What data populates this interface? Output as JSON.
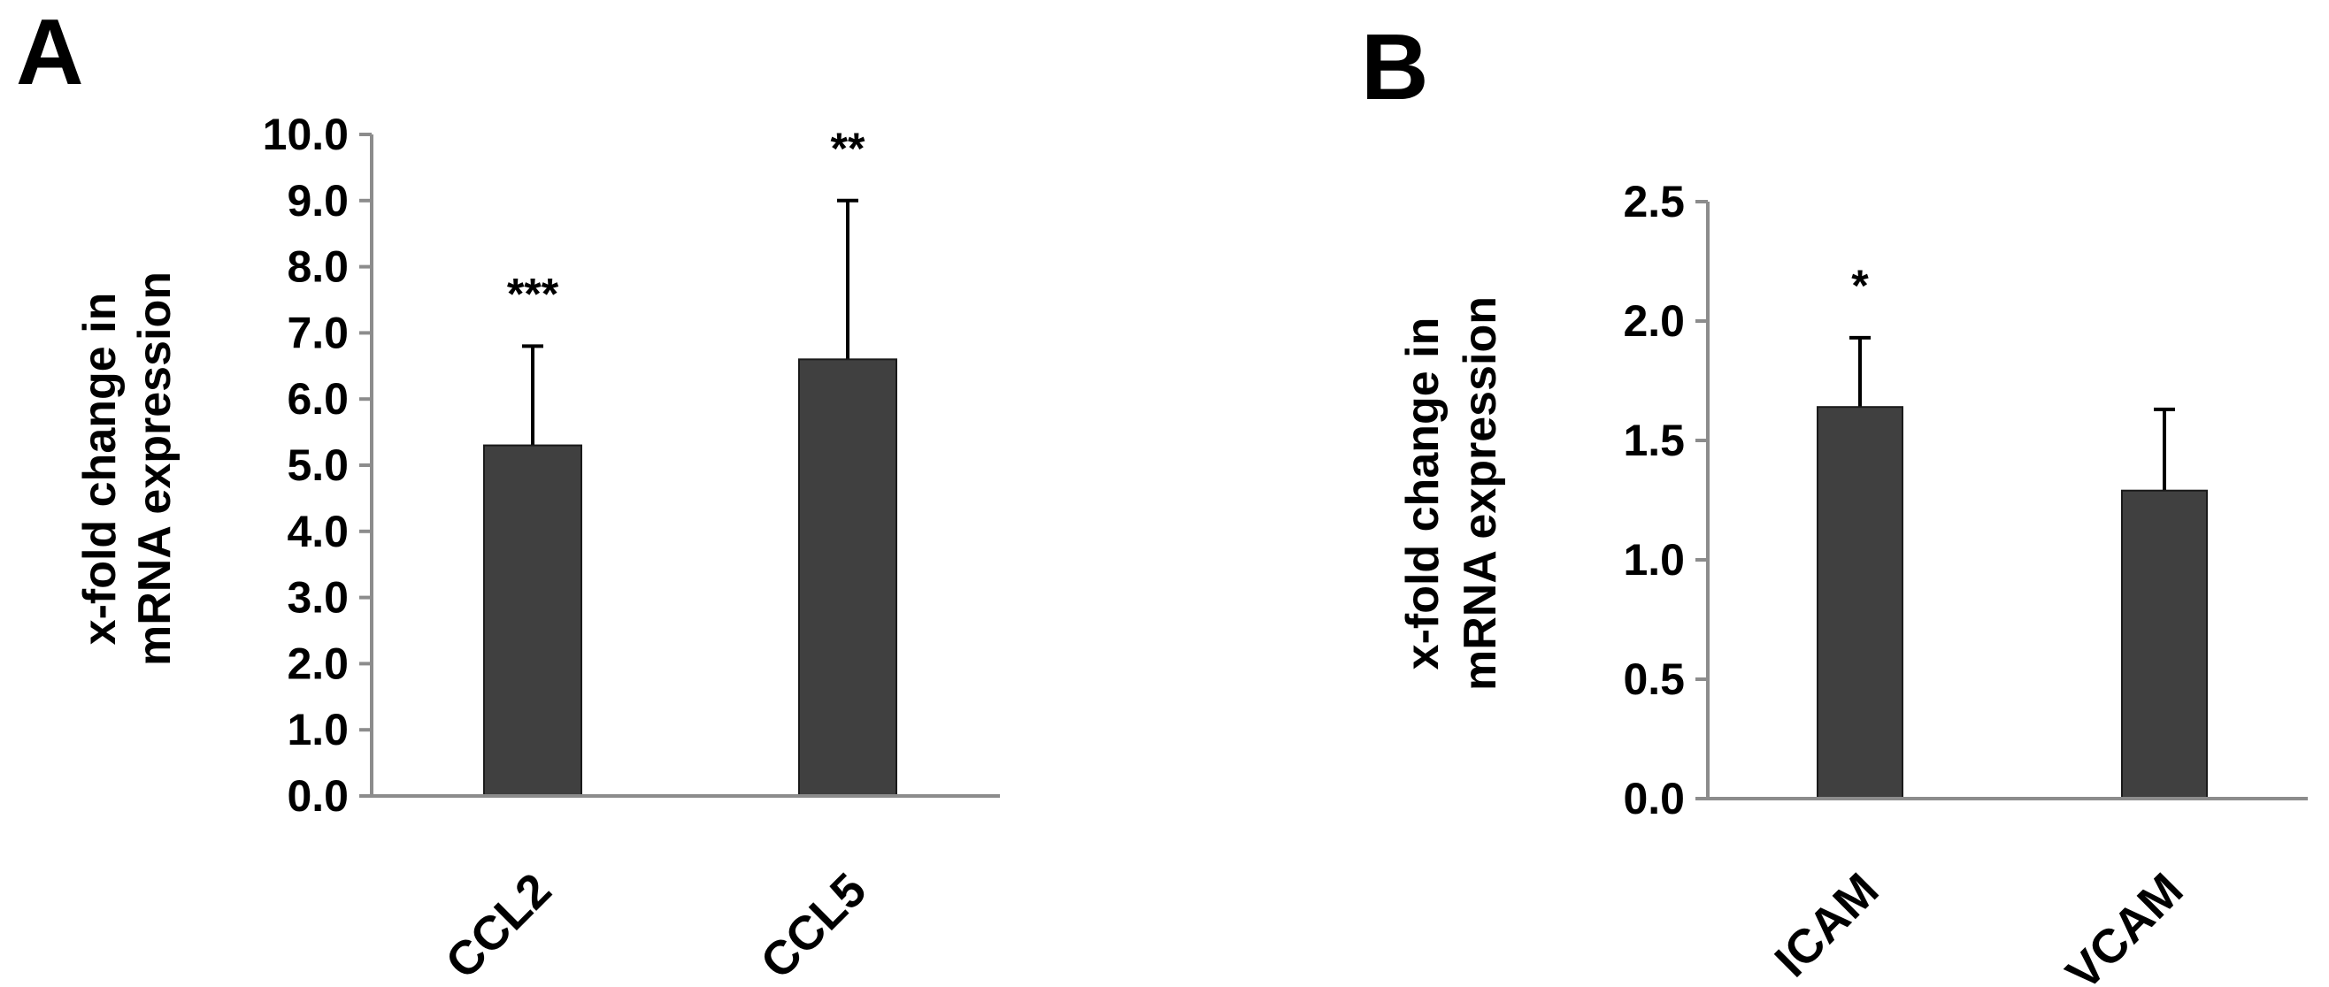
{
  "chart_data": [
    {
      "type": "bar",
      "panel_label": "A",
      "ylabel": [
        "x-fold change in",
        "mRNA expression"
      ],
      "xlabel": "",
      "categories": [
        "CCL2",
        "CCL5"
      ],
      "values": [
        5.3,
        6.6
      ],
      "error_upper": [
        6.8,
        9.0
      ],
      "significance": [
        "***",
        "**"
      ],
      "ylim": [
        0,
        10
      ],
      "yticks": [
        "0.0",
        "1.0",
        "2.0",
        "3.0",
        "4.0",
        "5.0",
        "6.0",
        "7.0",
        "8.0",
        "9.0",
        "10.0"
      ],
      "grid": false,
      "bar_color": "#404040"
    },
    {
      "type": "bar",
      "panel_label": "B",
      "ylabel": [
        "x-fold change in",
        "mRNA expression"
      ],
      "xlabel": "",
      "categories": [
        "ICAM",
        "VCAM"
      ],
      "values": [
        1.64,
        1.29
      ],
      "error_upper": [
        1.93,
        1.63
      ],
      "significance": [
        "*",
        ""
      ],
      "ylim": [
        0,
        2.5
      ],
      "yticks": [
        "0.0",
        "0.5",
        "1.0",
        "1.5",
        "2.0",
        "2.5"
      ],
      "grid": false,
      "bar_color": "#404040"
    }
  ]
}
